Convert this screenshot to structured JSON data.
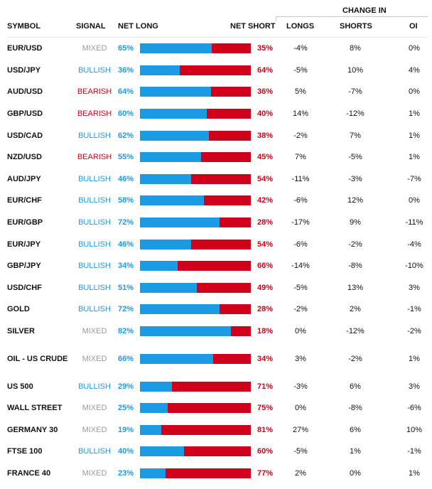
{
  "header": {
    "symbol": "SYMBOL",
    "signal": "SIGNAL",
    "net_long": "NET LONG",
    "net_short": "NET SHORT",
    "change_in": "CHANGE IN",
    "longs": "LONGS",
    "shorts": "SHORTS",
    "oi": "OI"
  },
  "colors": {
    "long": "#1a9be3",
    "short": "#d0021b",
    "mixed": "#9a9a9a"
  },
  "rows": [
    {
      "symbol": "EUR/USD",
      "signal": "MIXED",
      "net_long": "65%",
      "net_short": "35%",
      "long_pct": 65,
      "longs": "-4%",
      "shorts": "8%",
      "oi": "0%"
    },
    {
      "symbol": "USD/JPY",
      "signal": "BULLISH",
      "net_long": "36%",
      "net_short": "64%",
      "long_pct": 36,
      "longs": "-5%",
      "shorts": "10%",
      "oi": "4%"
    },
    {
      "symbol": "AUD/USD",
      "signal": "BEARISH",
      "net_long": "64%",
      "net_short": "36%",
      "long_pct": 64,
      "longs": "5%",
      "shorts": "-7%",
      "oi": "0%"
    },
    {
      "symbol": "GBP/USD",
      "signal": "BEARISH",
      "net_long": "60%",
      "net_short": "40%",
      "long_pct": 60,
      "longs": "14%",
      "shorts": "-12%",
      "oi": "1%"
    },
    {
      "symbol": "USD/CAD",
      "signal": "BULLISH",
      "net_long": "62%",
      "net_short": "38%",
      "long_pct": 62,
      "longs": "-2%",
      "shorts": "7%",
      "oi": "1%"
    },
    {
      "symbol": "NZD/USD",
      "signal": "BEARISH",
      "net_long": "55%",
      "net_short": "45%",
      "long_pct": 55,
      "longs": "7%",
      "shorts": "-5%",
      "oi": "1%"
    },
    {
      "symbol": "AUD/JPY",
      "signal": "BULLISH",
      "net_long": "46%",
      "net_short": "54%",
      "long_pct": 46,
      "longs": "-11%",
      "shorts": "-3%",
      "oi": "-7%"
    },
    {
      "symbol": "EUR/CHF",
      "signal": "BULLISH",
      "net_long": "58%",
      "net_short": "42%",
      "long_pct": 58,
      "longs": "-6%",
      "shorts": "12%",
      "oi": "0%"
    },
    {
      "symbol": "EUR/GBP",
      "signal": "BULLISH",
      "net_long": "72%",
      "net_short": "28%",
      "long_pct": 72,
      "longs": "-17%",
      "shorts": "9%",
      "oi": "-11%"
    },
    {
      "symbol": "EUR/JPY",
      "signal": "BULLISH",
      "net_long": "46%",
      "net_short": "54%",
      "long_pct": 46,
      "longs": "-6%",
      "shorts": "-2%",
      "oi": "-4%"
    },
    {
      "symbol": "GBP/JPY",
      "signal": "BULLISH",
      "net_long": "34%",
      "net_short": "66%",
      "long_pct": 34,
      "longs": "-14%",
      "shorts": "-8%",
      "oi": "-10%"
    },
    {
      "symbol": "USD/CHF",
      "signal": "BULLISH",
      "net_long": "51%",
      "net_short": "49%",
      "long_pct": 51,
      "longs": "-5%",
      "shorts": "13%",
      "oi": "3%"
    },
    {
      "symbol": "GOLD",
      "signal": "BULLISH",
      "net_long": "72%",
      "net_short": "28%",
      "long_pct": 72,
      "longs": "-2%",
      "shorts": "2%",
      "oi": "-1%"
    },
    {
      "symbol": "SILVER",
      "signal": "MIXED",
      "net_long": "82%",
      "net_short": "18%",
      "long_pct": 82,
      "longs": "0%",
      "shorts": "-12%",
      "oi": "-2%"
    },
    {
      "symbol": "OIL - US CRUDE",
      "signal": "MIXED",
      "net_long": "66%",
      "net_short": "34%",
      "long_pct": 66,
      "longs": "3%",
      "shorts": "-2%",
      "oi": "1%",
      "tall": true
    },
    {
      "symbol": "US 500",
      "signal": "BULLISH",
      "net_long": "29%",
      "net_short": "71%",
      "long_pct": 29,
      "longs": "-3%",
      "shorts": "6%",
      "oi": "3%"
    },
    {
      "symbol": "WALL STREET",
      "signal": "MIXED",
      "net_long": "25%",
      "net_short": "75%",
      "long_pct": 25,
      "longs": "0%",
      "shorts": "-8%",
      "oi": "-6%"
    },
    {
      "symbol": "GERMANY 30",
      "signal": "MIXED",
      "net_long": "19%",
      "net_short": "81%",
      "long_pct": 19,
      "longs": "27%",
      "shorts": "6%",
      "oi": "10%"
    },
    {
      "symbol": "FTSE 100",
      "signal": "BULLISH",
      "net_long": "40%",
      "net_short": "60%",
      "long_pct": 40,
      "longs": "-5%",
      "shorts": "1%",
      "oi": "-1%"
    },
    {
      "symbol": "FRANCE 40",
      "signal": "MIXED",
      "net_long": "23%",
      "net_short": "77%",
      "long_pct": 23,
      "longs": "2%",
      "shorts": "0%",
      "oi": "1%"
    }
  ]
}
